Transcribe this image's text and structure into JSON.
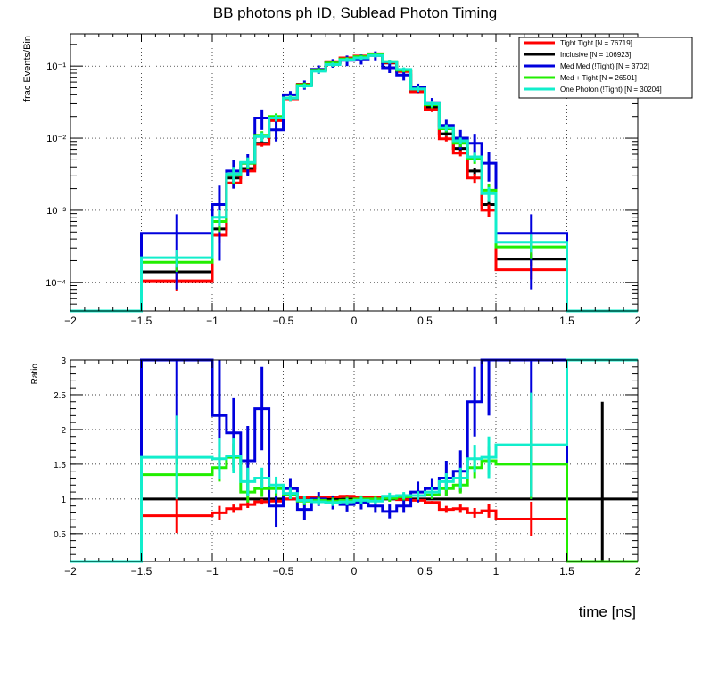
{
  "title": "BB photons ph ID, Sublead Photon Timing",
  "xlabel": "time [ns]",
  "colors": {
    "tight_tight": "#ff0000",
    "inclusive": "#000000",
    "med_med": "#0000dd",
    "med_tight": "#22ee00",
    "one_photon": "#11eecc"
  },
  "chart_data": [
    {
      "type": "line",
      "name": "top",
      "title": "BB photons ph ID, Sublead Photon Timing",
      "ylabel": "frac Events/Bin",
      "yscale": "log",
      "xlim": [
        -2,
        2
      ],
      "ylim": [
        4e-05,
        0.28
      ],
      "grid": true,
      "x_ticks": [
        -2,
        -1.5,
        -1,
        -0.5,
        0,
        0.5,
        1,
        1.5,
        2
      ],
      "x_tick_labels": [
        "−2",
        "−1.5",
        "−1",
        "−0.5",
        "0",
        "0.5",
        "1",
        "1.5",
        "2"
      ],
      "y_ticks": [
        0.0001,
        0.001,
        0.01,
        0.1
      ],
      "y_tick_labels": [
        "10⁻⁴",
        "10⁻³",
        "10⁻²",
        "10⁻¹"
      ],
      "legend_position": "top-right",
      "bin_edges": [
        -2,
        -1.5,
        -1,
        -0.9,
        -0.8,
        -0.7,
        -0.6,
        -0.5,
        -0.4,
        -0.3,
        -0.2,
        -0.1,
        0,
        0.1,
        0.2,
        0.3,
        0.4,
        0.5,
        0.6,
        0.7,
        0.8,
        0.9,
        1,
        1.5,
        2
      ],
      "series": [
        {
          "key": "inclusive",
          "label": "Inclusive [N = 106923]",
          "values": [
            0,
            0.00014,
            0.00055,
            0.0028,
            0.0038,
            0.0085,
            0.018,
            0.035,
            0.055,
            0.088,
            0.112,
            0.125,
            0.135,
            0.145,
            0.11,
            0.085,
            0.045,
            0.027,
            0.0115,
            0.0072,
            0.0035,
            0.0012,
            0.00021,
            0
          ],
          "errors": [
            0,
            3e-05,
            0.0001,
            0.0004,
            0.0004,
            0.0006,
            0.001,
            0.002,
            0.002,
            0.003,
            0.003,
            0.004,
            0.004,
            0.004,
            0.003,
            0.003,
            0.002,
            0.002,
            0.0008,
            0.0006,
            0.0004,
            0.0002,
            4e-05,
            0
          ]
        },
        {
          "key": "tight_tight",
          "label": "Tight Tight [N = 76719]",
          "values": [
            0,
            0.000105,
            0.00045,
            0.0024,
            0.0035,
            0.0082,
            0.0175,
            0.035,
            0.056,
            0.09,
            0.115,
            0.13,
            0.138,
            0.148,
            0.112,
            0.084,
            0.044,
            0.025,
            0.0098,
            0.0062,
            0.0028,
            0.001,
            0.00015,
            0
          ],
          "errors": [
            0,
            3e-05,
            0.0001,
            0.0004,
            0.0004,
            0.0006,
            0.001,
            0.002,
            0.002,
            0.003,
            0.003,
            0.004,
            0.004,
            0.004,
            0.003,
            0.003,
            0.002,
            0.002,
            0.0008,
            0.0006,
            0.0004,
            0.0002,
            4e-05,
            0
          ]
        },
        {
          "key": "med_med",
          "label": "Med Med (!Tight) [N = 3702]",
          "values": [
            0,
            0.00048,
            0.0012,
            0.0035,
            0.0045,
            0.019,
            0.013,
            0.04,
            0.055,
            0.09,
            0.11,
            0.12,
            0.125,
            0.14,
            0.095,
            0.075,
            0.05,
            0.031,
            0.015,
            0.01,
            0.0085,
            0.0045,
            0.00048,
            0
          ],
          "errors": [
            0,
            0.0004,
            0.001,
            0.0015,
            0.0015,
            0.006,
            0.004,
            0.005,
            0.008,
            0.012,
            0.015,
            0.02,
            0.02,
            0.02,
            0.015,
            0.012,
            0.007,
            0.005,
            0.003,
            0.003,
            0.003,
            0.002,
            0.0004,
            0
          ]
        },
        {
          "key": "med_tight",
          "label": "Med + Tight [N = 26501]",
          "values": [
            0,
            0.00019,
            0.0007,
            0.0031,
            0.0045,
            0.011,
            0.02,
            0.036,
            0.055,
            0.088,
            0.11,
            0.125,
            0.135,
            0.145,
            0.115,
            0.088,
            0.048,
            0.029,
            0.0135,
            0.0085,
            0.0052,
            0.0019,
            0.00031,
            0
          ],
          "errors": [
            0,
            5e-05,
            0.0002,
            0.0008,
            0.0008,
            0.0015,
            0.002,
            0.003,
            0.004,
            0.006,
            0.007,
            0.008,
            0.008,
            0.008,
            0.007,
            0.006,
            0.004,
            0.003,
            0.0015,
            0.001,
            0.0008,
            0.0004,
            0.0001,
            0
          ]
        },
        {
          "key": "one_photon",
          "label": "One Photon (!Tight) [N = 30204]",
          "values": [
            0,
            0.00022,
            0.0008,
            0.0032,
            0.0046,
            0.0105,
            0.019,
            0.036,
            0.053,
            0.085,
            0.105,
            0.122,
            0.13,
            0.14,
            0.115,
            0.09,
            0.048,
            0.03,
            0.014,
            0.0092,
            0.0055,
            0.0017,
            0.00036,
            0
          ],
          "errors": [
            0,
            6e-05,
            0.0002,
            0.0008,
            0.0008,
            0.0015,
            0.002,
            0.003,
            0.004,
            0.006,
            0.007,
            0.008,
            0.008,
            0.008,
            0.007,
            0.006,
            0.004,
            0.003,
            0.0015,
            0.001,
            0.0008,
            0.0004,
            0.0001,
            0
          ]
        }
      ]
    },
    {
      "type": "line",
      "name": "ratio",
      "ylabel": "Ratio",
      "yscale": "linear",
      "xlim": [
        -2,
        2
      ],
      "ylim": [
        0.1,
        3
      ],
      "grid": true,
      "x_ticks": [
        -2,
        -1.5,
        -1,
        -0.5,
        0,
        0.5,
        1,
        1.5,
        2
      ],
      "x_tick_labels": [
        "−2",
        "−1.5",
        "−1",
        "−0.5",
        "0",
        "0.5",
        "1",
        "1.5",
        "2"
      ],
      "y_ticks": [
        0.5,
        1,
        1.5,
        2,
        2.5,
        3
      ],
      "y_tick_labels": [
        "0.5",
        "1",
        "1.5",
        "2",
        "2.5",
        "3"
      ],
      "bin_edges": [
        -2,
        -1.5,
        -1,
        -0.9,
        -0.8,
        -0.7,
        -0.6,
        -0.5,
        -0.4,
        -0.3,
        -0.2,
        -0.1,
        0,
        0.1,
        0.2,
        0.3,
        0.4,
        0.5,
        0.6,
        0.7,
        0.8,
        0.9,
        1,
        1.5,
        2
      ],
      "series": [
        {
          "key": "inclusive",
          "values": [
            0,
            1,
            1,
            1,
            1,
            1,
            1,
            1,
            1,
            1,
            1,
            1,
            1,
            1,
            1,
            1,
            1,
            1,
            1,
            1,
            1,
            1,
            1,
            1
          ],
          "errors": [
            0,
            0,
            0,
            0,
            0,
            0,
            0,
            0,
            0,
            0,
            0,
            0,
            0,
            0,
            0,
            0,
            0,
            0,
            0,
            0,
            0,
            0,
            0,
            1.4
          ]
        },
        {
          "key": "tight_tight",
          "values": [
            0,
            0.76,
            0.8,
            0.86,
            0.92,
            0.96,
            0.97,
            1.0,
            1.02,
            1.03,
            1.03,
            1.04,
            1.02,
            1.02,
            1.02,
            0.99,
            0.98,
            0.95,
            0.85,
            0.86,
            0.8,
            0.83,
            0.71,
            0
          ],
          "errors": [
            0,
            0.25,
            0.1,
            0.06,
            0.05,
            0.04,
            0.03,
            0.02,
            0.02,
            0.02,
            0.02,
            0.02,
            0.02,
            0.02,
            0.02,
            0.02,
            0.02,
            0.02,
            0.05,
            0.06,
            0.07,
            0.1,
            0.25,
            0
          ]
        },
        {
          "key": "med_med",
          "values": [
            0,
            3.0,
            2.2,
            1.95,
            1.55,
            2.3,
            0.9,
            1.15,
            0.85,
            1.0,
            0.95,
            0.92,
            0.95,
            0.9,
            0.82,
            0.9,
            1.1,
            1.15,
            1.3,
            1.4,
            2.4,
            3.0,
            3.0,
            0
          ],
          "errors": [
            0,
            1.5,
            0.8,
            0.5,
            0.5,
            0.6,
            0.3,
            0.15,
            0.15,
            0.1,
            0.1,
            0.1,
            0.1,
            0.1,
            0.1,
            0.1,
            0.15,
            0.15,
            0.25,
            0.3,
            0.5,
            0.8,
            2.0,
            0
          ]
        },
        {
          "key": "med_tight",
          "values": [
            0,
            1.35,
            1.45,
            1.6,
            1.1,
            1.15,
            1.15,
            1.06,
            0.97,
            0.98,
            0.97,
            0.98,
            1.0,
            1.0,
            1.01,
            1.03,
            1.05,
            1.06,
            1.15,
            1.2,
            1.45,
            1.55,
            1.5,
            0
          ],
          "errors": [
            0,
            0.3,
            0.2,
            0.2,
            0.15,
            0.12,
            0.1,
            0.06,
            0.06,
            0.05,
            0.05,
            0.05,
            0.05,
            0.05,
            0.05,
            0.05,
            0.06,
            0.06,
            0.1,
            0.12,
            0.15,
            0.2,
            0.5,
            0
          ]
        },
        {
          "key": "one_photon",
          "values": [
            0,
            1.6,
            1.58,
            1.62,
            1.25,
            1.3,
            1.2,
            1.08,
            0.98,
            0.96,
            0.95,
            0.96,
            0.98,
            0.97,
            1.04,
            1.05,
            1.05,
            1.1,
            1.25,
            1.3,
            1.58,
            1.6,
            1.78,
            3.0
          ],
          "errors": [
            0,
            0.6,
            0.3,
            0.25,
            0.2,
            0.15,
            0.12,
            0.08,
            0.06,
            0.05,
            0.05,
            0.05,
            0.05,
            0.05,
            0.05,
            0.05,
            0.06,
            0.07,
            0.12,
            0.15,
            0.2,
            0.3,
            0.75,
            0
          ]
        }
      ]
    }
  ]
}
